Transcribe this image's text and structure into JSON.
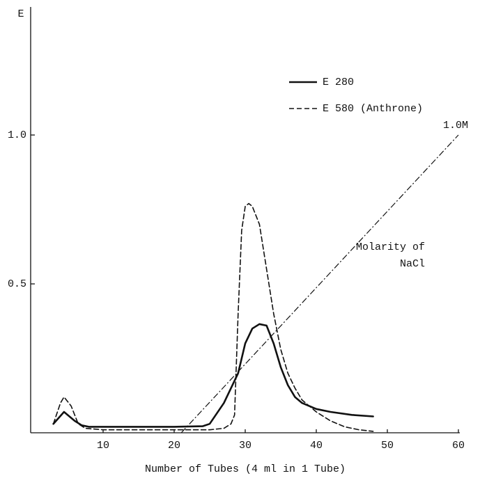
{
  "chart_data": {
    "type": "line",
    "y_label": "E",
    "x_label": "Number of Tubes (4 ml in 1 Tube)",
    "xlim": [
      0,
      60
    ],
    "xticks": [
      10,
      20,
      30,
      40,
      50,
      60
    ],
    "ylim": [
      0,
      1.43
    ],
    "yticks": [
      0.5,
      {
        "value": 1,
        "label": "1.0"
      }
    ],
    "grid": false,
    "legend": "upper right",
    "series": [
      {
        "name": "E 280",
        "color": "#111111",
        "line_style": "solid",
        "line_width": 2.6,
        "x": [
          3,
          4.5,
          6,
          7,
          8,
          10,
          15,
          20,
          24,
          25,
          27,
          28,
          29,
          30,
          31,
          32,
          33,
          34,
          35,
          36,
          37,
          38,
          40,
          42,
          45,
          48
        ],
        "values": [
          0.03,
          0.07,
          0.04,
          0.025,
          0.02,
          0.02,
          0.02,
          0.02,
          0.022,
          0.03,
          0.1,
          0.15,
          0.2,
          0.3,
          0.35,
          0.365,
          0.36,
          0.3,
          0.22,
          0.16,
          0.12,
          0.1,
          0.08,
          0.07,
          0.06,
          0.055
        ]
      },
      {
        "name": "E 580 (Anthrone)",
        "color": "#111111",
        "line_style": "dashed",
        "line_width": 1.6,
        "x": [
          3,
          4,
          4.5,
          5.5,
          6.5,
          7.5,
          10,
          15,
          20,
          25,
          27,
          28,
          28.5,
          29,
          29.5,
          30,
          30.5,
          31,
          32,
          33,
          34,
          35,
          36,
          37,
          38,
          40,
          42,
          44,
          46,
          48
        ],
        "values": [
          0.03,
          0.1,
          0.12,
          0.09,
          0.03,
          0.015,
          0.01,
          0.01,
          0.01,
          0.01,
          0.015,
          0.03,
          0.06,
          0.4,
          0.68,
          0.76,
          0.77,
          0.76,
          0.7,
          0.55,
          0.4,
          0.28,
          0.2,
          0.15,
          0.11,
          0.07,
          0.04,
          0.02,
          0.01,
          0.005
        ]
      }
    ],
    "molarity": {
      "line_style": "dashdot",
      "color": "#111111",
      "x": [
        21,
        60
      ],
      "values": [
        0,
        1.0
      ],
      "end_label": "1.0M",
      "labels": [
        "Molarity of",
        "NaCl"
      ]
    }
  }
}
